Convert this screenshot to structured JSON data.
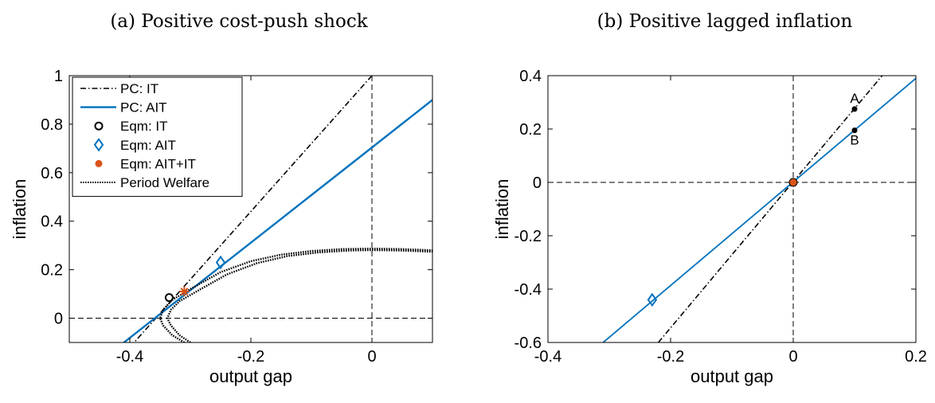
{
  "colors": {
    "it": "#000000",
    "ait": "#0072BD",
    "ait_it": "#D95319",
    "welfare": "#000000"
  },
  "panel_a": {
    "title": "(a) Positive cost-push shock",
    "chart_data": {
      "type": "line",
      "title": "(a) Positive cost-push shock",
      "xlabel": "output gap",
      "ylabel": "inflation",
      "xlim": [
        -0.5,
        0.1
      ],
      "ylim": [
        -0.1,
        1
      ],
      "xticks": [
        "-0.4",
        "-0.2",
        "0"
      ],
      "yticks": [
        "0",
        "0.2",
        "0.4",
        "0.6",
        "0.8",
        "1"
      ],
      "legend_position": "top-left",
      "legend": [
        "PC: IT",
        "PC: AIT",
        "Eqm: IT",
        "Eqm: AIT",
        "Eqm: AIT+IT",
        "Period Welfare"
      ],
      "series": [
        {
          "name": "PC: IT",
          "style": "dash-dot",
          "color": "#000000",
          "x": [
            -0.425,
            0.0
          ],
          "y": [
            -0.19,
            1.0
          ]
        },
        {
          "name": "PC: AIT",
          "style": "solid",
          "color": "#0072BD",
          "x": [
            -0.425,
            0.1
          ],
          "y": [
            -0.13,
            0.9
          ]
        },
        {
          "name": "Eqm: IT",
          "style": "circle",
          "color": "#000000",
          "x": [
            -0.335
          ],
          "y": [
            0.085
          ]
        },
        {
          "name": "Eqm: AIT",
          "style": "diamond",
          "color": "#0072BD",
          "x": [
            -0.25
          ],
          "y": [
            0.23
          ]
        },
        {
          "name": "Eqm: AIT+IT",
          "style": "asterisk",
          "color": "#D95319",
          "x": [
            -0.31
          ],
          "y": [
            0.11
          ]
        },
        {
          "name": "Period Welfare",
          "style": "dotted",
          "color": "#000000",
          "x": [
            -0.31,
            -0.33,
            -0.345,
            -0.35,
            -0.345,
            -0.33,
            -0.3,
            -0.25,
            -0.2,
            -0.15,
            -0.1,
            -0.05,
            0.0,
            0.05,
            0.1
          ],
          "y": [
            -0.1,
            -0.07,
            -0.03,
            0.0,
            0.035,
            0.075,
            0.12,
            0.19,
            0.235,
            0.262,
            0.277,
            0.285,
            0.287,
            0.285,
            0.28
          ]
        },
        {
          "name": "Period Welfare",
          "style": "dotted",
          "color": "#000000",
          "x": [
            -0.3,
            -0.318,
            -0.332,
            -0.338,
            -0.332,
            -0.318,
            -0.29,
            -0.24,
            -0.19,
            -0.14,
            -0.09,
            -0.04,
            0.0,
            0.05,
            0.1
          ],
          "y": [
            -0.1,
            -0.07,
            -0.03,
            0.0,
            0.035,
            0.07,
            0.11,
            0.18,
            0.227,
            0.256,
            0.271,
            0.279,
            0.281,
            0.279,
            0.274
          ]
        }
      ],
      "reference_lines": {
        "vertical_x": 0,
        "horizontal_y": 0,
        "style": "dashed"
      }
    }
  },
  "panel_b": {
    "title": "(b) Positive lagged inflation",
    "chart_data": {
      "type": "line",
      "title": "(b) Positive lagged inflation",
      "xlabel": "output gap",
      "ylabel": "inflation",
      "xlim": [
        -0.4,
        0.2
      ],
      "ylim": [
        -0.6,
        0.4
      ],
      "xticks": [
        "-0.4",
        "-0.2",
        "0",
        "0.2"
      ],
      "yticks": [
        "-0.6",
        "-0.4",
        "-0.2",
        "0",
        "0.2",
        "0.4"
      ],
      "series": [
        {
          "style": "dash-dot",
          "color": "#000000",
          "x": [
            -0.22,
            0.145
          ],
          "y": [
            -0.6,
            0.4
          ]
        },
        {
          "style": "solid",
          "color": "#0072BD",
          "x": [
            -0.31,
            0.2
          ],
          "y": [
            -0.6,
            0.39
          ]
        },
        {
          "style": "diamond",
          "color": "#0072BD",
          "x": [
            -0.23
          ],
          "y": [
            -0.44
          ]
        },
        {
          "style": "circle",
          "color": "#000000",
          "x": [
            0.0
          ],
          "y": [
            0.0
          ]
        },
        {
          "style": "dot",
          "color": "#D95319",
          "x": [
            0.0
          ],
          "y": [
            0.0
          ]
        }
      ],
      "annotations": [
        {
          "text": "A",
          "x": 0.1,
          "y": 0.275
        },
        {
          "text": "B",
          "x": 0.1,
          "y": 0.195
        }
      ],
      "reference_lines": {
        "vertical_x": 0,
        "horizontal_y": 0,
        "style": "dashed"
      }
    }
  }
}
